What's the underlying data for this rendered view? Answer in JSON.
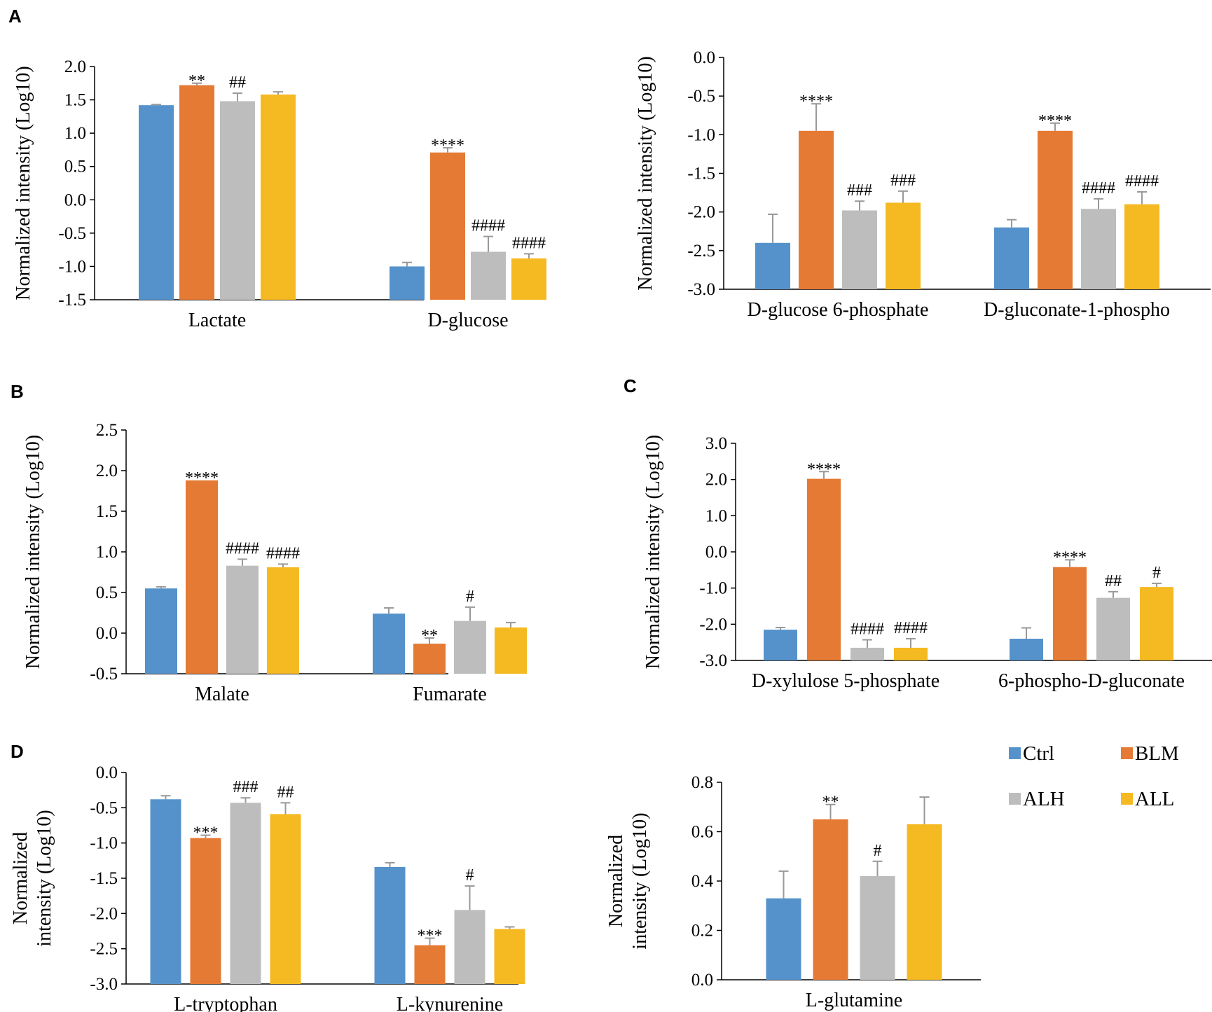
{
  "legend": [
    {
      "name": "Ctrl",
      "color": "#5592cb"
    },
    {
      "name": "BLM",
      "color": "#e57a34"
    },
    {
      "name": "ALH",
      "color": "#bdbdbd"
    },
    {
      "name": "ALL",
      "color": "#f5b922"
    }
  ],
  "chart_data": [
    {
      "panel_label": "A",
      "type": "bar",
      "ylabel": "Normalized intensity (Log10)",
      "ylim": [
        -1.5,
        2.0
      ],
      "yticks": [
        "2.0",
        "1.5",
        "1.0",
        "0.5",
        "0.0",
        "-0.5",
        "-1.0",
        "-1.5"
      ],
      "categories": [
        "Lactate",
        "D-glucose"
      ],
      "series": [
        {
          "name": "Ctrl",
          "values": [
            1.42,
            -1.0
          ],
          "errors": [
            0.01,
            0.06
          ],
          "labels": [
            "",
            ""
          ]
        },
        {
          "name": "BLM",
          "values": [
            1.72,
            0.71
          ],
          "errors": [
            0.03,
            0.07
          ],
          "labels": [
            "**",
            "****"
          ]
        },
        {
          "name": "ALH",
          "values": [
            1.48,
            -0.78
          ],
          "errors": [
            0.12,
            0.23
          ],
          "labels": [
            "##",
            "####"
          ]
        },
        {
          "name": "ALL",
          "values": [
            1.58,
            -0.88
          ],
          "errors": [
            0.04,
            0.07
          ],
          "labels": [
            "",
            "####"
          ]
        }
      ]
    },
    {
      "panel_label": "",
      "type": "bar",
      "ylabel": "Normalized intensity (Log10)",
      "ylim": [
        -3.0,
        0.0
      ],
      "yticks": [
        "0.0",
        "-0.5",
        "-1.0",
        "-1.5",
        "-2.0",
        "-2.5",
        "-3.0"
      ],
      "categories": [
        "D-glucose 6-phosphate",
        "D-gluconate-1-phospho"
      ],
      "series": [
        {
          "name": "Ctrl",
          "values": [
            -2.4,
            -2.2
          ],
          "errors": [
            0.37,
            0.1
          ],
          "labels": [
            "",
            ""
          ]
        },
        {
          "name": "BLM",
          "values": [
            -0.95,
            -0.95
          ],
          "errors": [
            0.35,
            0.1
          ],
          "labels": [
            "****",
            "****"
          ]
        },
        {
          "name": "ALH",
          "values": [
            -1.98,
            -1.96
          ],
          "errors": [
            0.12,
            0.13
          ],
          "labels": [
            "###",
            "####"
          ]
        },
        {
          "name": "ALL",
          "values": [
            -1.88,
            -1.9
          ],
          "errors": [
            0.15,
            0.16
          ],
          "labels": [
            "###",
            "####"
          ]
        }
      ]
    },
    {
      "panel_label": "B",
      "type": "bar",
      "ylabel": "Normalized intensity (Log10)",
      "ylim": [
        -0.5,
        2.5
      ],
      "yticks": [
        "2.5",
        "2.0",
        "1.5",
        "1.0",
        "0.5",
        "0.0",
        "-0.5"
      ],
      "categories": [
        "Malate",
        "Fumarate"
      ],
      "series": [
        {
          "name": "Ctrl",
          "values": [
            0.55,
            0.24
          ],
          "errors": [
            0.02,
            0.07
          ],
          "labels": [
            "",
            ""
          ]
        },
        {
          "name": "BLM",
          "values": [
            1.88,
            -0.13
          ],
          "errors": [
            0.0,
            0.07
          ],
          "labels": [
            "****",
            "**"
          ]
        },
        {
          "name": "ALH",
          "values": [
            0.83,
            0.15
          ],
          "errors": [
            0.08,
            0.17
          ],
          "labels": [
            "####",
            "#"
          ]
        },
        {
          "name": "ALL",
          "values": [
            0.81,
            0.07
          ],
          "errors": [
            0.04,
            0.06
          ],
          "labels": [
            "####",
            ""
          ]
        }
      ]
    },
    {
      "panel_label": "C",
      "type": "bar",
      "ylabel": "Normalized intensity (Log10)",
      "ylim": [
        -3.0,
        3.0
      ],
      "yticks": [
        "3.0",
        "2.0",
        "1.0",
        "0.0",
        "-1.0",
        "-2.0",
        "-3.0"
      ],
      "categories": [
        "D-xylulose 5-phosphate",
        "6-phospho-D-gluconate"
      ],
      "series": [
        {
          "name": "Ctrl",
          "values": [
            -2.15,
            -2.4
          ],
          "errors": [
            0.06,
            0.3
          ],
          "labels": [
            "",
            ""
          ]
        },
        {
          "name": "BLM",
          "values": [
            2.02,
            -0.42
          ],
          "errors": [
            0.2,
            0.2
          ],
          "labels": [
            "****",
            "****"
          ]
        },
        {
          "name": "ALH",
          "values": [
            -2.65,
            -1.27
          ],
          "errors": [
            0.22,
            0.17
          ],
          "labels": [
            "####",
            "##"
          ]
        },
        {
          "name": "ALL",
          "values": [
            -2.65,
            -0.97
          ],
          "errors": [
            0.25,
            0.1
          ],
          "labels": [
            "####",
            "#"
          ]
        }
      ]
    },
    {
      "panel_label": "D",
      "type": "bar",
      "ylabel": "Normalized intensity (Log10)",
      "ylim": [
        -3.0,
        0.0
      ],
      "yticks": [
        "0.0",
        "-0.5",
        "-1.0",
        "-1.5",
        "-2.0",
        "-2.5",
        "-3.0"
      ],
      "categories": [
        "L-tryptophan",
        "L-kynurenine"
      ],
      "series": [
        {
          "name": "Ctrl",
          "values": [
            -0.38,
            -1.34
          ],
          "errors": [
            0.05,
            0.06
          ],
          "labels": [
            "",
            ""
          ]
        },
        {
          "name": "BLM",
          "values": [
            -0.93,
            -2.45
          ],
          "errors": [
            0.04,
            0.1
          ],
          "labels": [
            "***",
            "***"
          ]
        },
        {
          "name": "ALH",
          "values": [
            -0.43,
            -1.95
          ],
          "errors": [
            0.07,
            0.34
          ],
          "labels": [
            "###",
            "#"
          ]
        },
        {
          "name": "ALL",
          "values": [
            -0.59,
            -2.22
          ],
          "errors": [
            0.16,
            0.03
          ],
          "labels": [
            "##",
            ""
          ]
        }
      ]
    },
    {
      "panel_label": "",
      "type": "bar",
      "ylabel": "Normalized intensity (Log10)",
      "ylim": [
        0.0,
        0.8
      ],
      "yticks": [
        "0.8",
        "0.6",
        "0.4",
        "0.2",
        "0.0"
      ],
      "categories": [
        "L-glutamine"
      ],
      "series": [
        {
          "name": "Ctrl",
          "values": [
            0.33
          ],
          "errors": [
            0.11
          ],
          "labels": [
            ""
          ]
        },
        {
          "name": "BLM",
          "values": [
            0.65
          ],
          "errors": [
            0.06
          ],
          "labels": [
            "**"
          ]
        },
        {
          "name": "ALH",
          "values": [
            0.42
          ],
          "errors": [
            0.06
          ],
          "labels": [
            "#"
          ]
        },
        {
          "name": "ALL",
          "values": [
            0.63
          ],
          "errors": [
            0.11
          ],
          "labels": [
            ""
          ]
        }
      ]
    }
  ]
}
